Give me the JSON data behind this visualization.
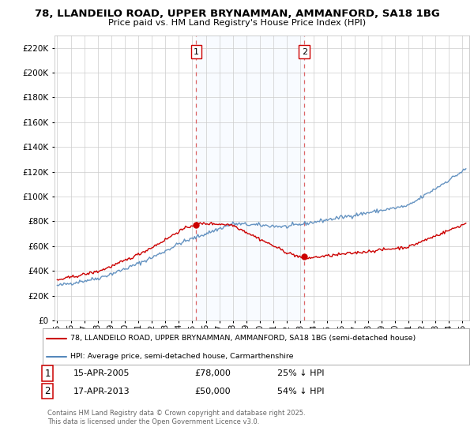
{
  "title1": "78, LLANDEILO ROAD, UPPER BRYNAMMAN, AMMANFORD, SA18 1BG",
  "title2": "Price paid vs. HM Land Registry's House Price Index (HPI)",
  "legend_line1": "78, LLANDEILO ROAD, UPPER BRYNAMMAN, AMMANFORD, SA18 1BG (semi-detached house)",
  "legend_line2": "HPI: Average price, semi-detached house, Carmarthenshire",
  "sale1_date": "15-APR-2005",
  "sale1_price": "£78,000",
  "sale1_hpi": "25% ↓ HPI",
  "sale2_date": "17-APR-2013",
  "sale2_price": "£50,000",
  "sale2_hpi": "54% ↓ HPI",
  "copyright": "Contains HM Land Registry data © Crown copyright and database right 2025.\nThis data is licensed under the Open Government Licence v3.0.",
  "house_color": "#cc0000",
  "hpi_color": "#5588bb",
  "sale1_year": 2005.29,
  "sale2_year": 2013.29,
  "ylim_max": 230000,
  "ylim_min": 0,
  "bg_color": "#ffffff",
  "grid_color": "#cccccc",
  "shade_color": "#ddeeff",
  "vline_color": "#dd6666"
}
